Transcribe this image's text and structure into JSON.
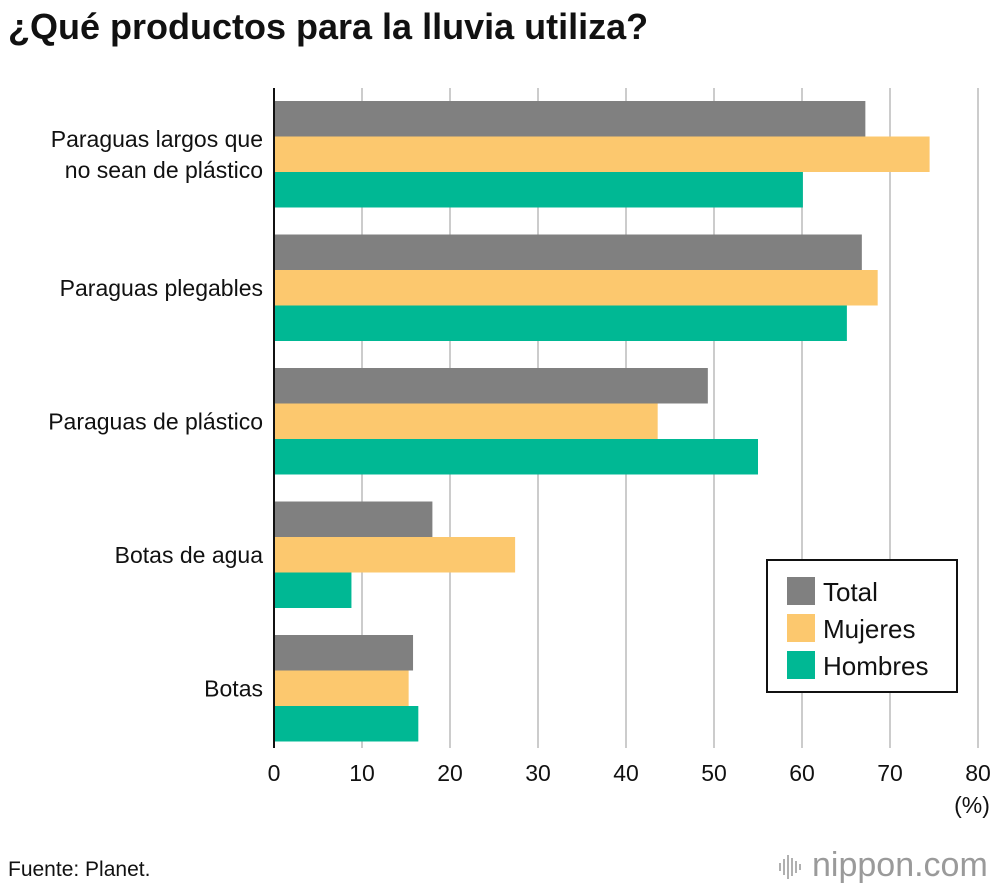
{
  "title": "¿Qué productos para la lluvia utiliza?",
  "source": "Fuente: Planet.",
  "brand": {
    "name": "nippon",
    "domain": ".com"
  },
  "chart_data": {
    "type": "bar",
    "orientation": "horizontal",
    "title": "¿Qué productos para la lluvia utiliza?",
    "xlabel": "(%)",
    "ylabel": "",
    "xlim": [
      0,
      80
    ],
    "xticks": [
      0,
      10,
      20,
      30,
      40,
      50,
      60,
      70,
      80
    ],
    "grid": true,
    "legend_position": "bottom-right",
    "categories": [
      [
        "Paraguas largos que",
        "no sean de plástico"
      ],
      [
        "Paraguas plegables"
      ],
      [
        "Paraguas de plástico"
      ],
      [
        "Botas de agua"
      ],
      [
        "Botas"
      ]
    ],
    "series": [
      {
        "name": "Total",
        "color": "#808080",
        "values": [
          67.2,
          66.8,
          49.3,
          18.0,
          15.8
        ]
      },
      {
        "name": "Mujeres",
        "color": "#fcc86e",
        "values": [
          74.5,
          68.6,
          43.6,
          27.4,
          15.3
        ]
      },
      {
        "name": "Hombres",
        "color": "#00b894",
        "values": [
          60.1,
          65.1,
          55.0,
          8.8,
          16.4
        ]
      }
    ]
  }
}
